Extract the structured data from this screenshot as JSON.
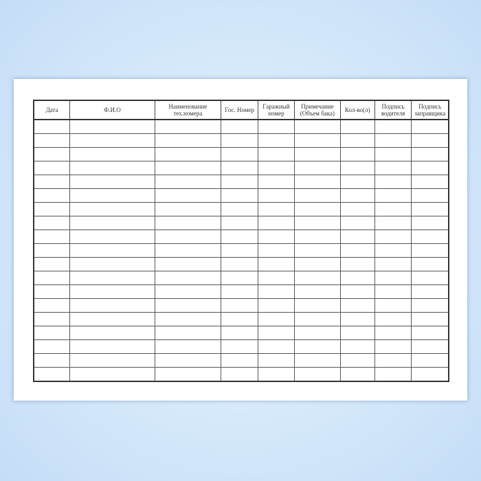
{
  "table": {
    "headers": [
      {
        "line1": "Дата",
        "line2": ""
      },
      {
        "line1": "Ф.И.О",
        "line2": ""
      },
      {
        "line1": "Наименование",
        "line2": "тех.номера"
      },
      {
        "line1": "Гос. Номер",
        "line2": ""
      },
      {
        "line1": "Гаражный",
        "line2": "номер"
      },
      {
        "line1": "Примечание",
        "line2": "(Объем бака)"
      },
      {
        "line1": "Кол-во(л)",
        "line2": ""
      },
      {
        "line1": "Подпись",
        "line2": "водителя"
      },
      {
        "line1": "Подпись",
        "line2": "заправщика"
      }
    ],
    "empty_rows": 19
  }
}
